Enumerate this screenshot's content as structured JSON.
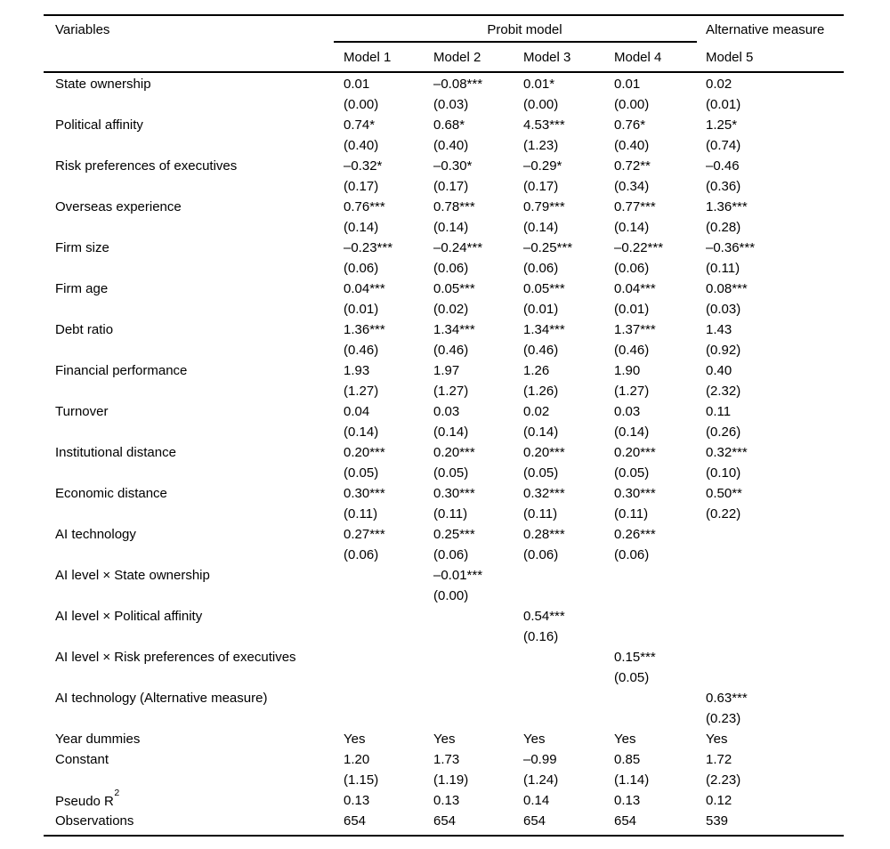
{
  "table": {
    "header": {
      "variables_label": "Variables",
      "group_label": "Probit model",
      "alt_group_label": "Alternative measure",
      "model_labels": [
        "Model 1",
        "Model 2",
        "Model 3",
        "Model 4",
        "Model 5"
      ]
    },
    "rows": [
      {
        "label": "State ownership",
        "coef": [
          "0.01",
          "–0.08***",
          "0.01*",
          "0.01",
          "0.02"
        ],
        "se": [
          "(0.00)",
          "(0.03)",
          "(0.00)",
          "(0.00)",
          "(0.01)"
        ]
      },
      {
        "label": "Political affinity",
        "coef": [
          "0.74*",
          "0.68*",
          "4.53***",
          "0.76*",
          "1.25*"
        ],
        "se": [
          "(0.40)",
          "(0.40)",
          "(1.23)",
          "(0.40)",
          "(0.74)"
        ]
      },
      {
        "label": "Risk preferences of executives",
        "coef": [
          "–0.32*",
          "–0.30*",
          "–0.29*",
          "0.72**",
          "–0.46"
        ],
        "se": [
          "(0.17)",
          "(0.17)",
          "(0.17)",
          "(0.34)",
          "(0.36)"
        ]
      },
      {
        "label": "Overseas experience",
        "coef": [
          "0.76***",
          "0.78***",
          "0.79***",
          "0.77***",
          "1.36***"
        ],
        "se": [
          "(0.14)",
          "(0.14)",
          "(0.14)",
          "(0.14)",
          "(0.28)"
        ]
      },
      {
        "label": "Firm size",
        "coef": [
          "–0.23***",
          "–0.24***",
          "–0.25***",
          "–0.22***",
          "–0.36***"
        ],
        "se": [
          "(0.06)",
          "(0.06)",
          "(0.06)",
          "(0.06)",
          "(0.11)"
        ]
      },
      {
        "label": "Firm age",
        "coef": [
          "0.04***",
          "0.05***",
          "0.05***",
          "0.04***",
          "0.08***"
        ],
        "se": [
          "(0.01)",
          "(0.02)",
          "(0.01)",
          "(0.01)",
          "(0.03)"
        ]
      },
      {
        "label": "Debt ratio",
        "coef": [
          "1.36***",
          "1.34***",
          "1.34***",
          "1.37***",
          "1.43"
        ],
        "se": [
          "(0.46)",
          "(0.46)",
          "(0.46)",
          "(0.46)",
          "(0.92)"
        ]
      },
      {
        "label": "Financial performance",
        "coef": [
          "1.93",
          "1.97",
          "1.26",
          "1.90",
          "0.40"
        ],
        "se": [
          "(1.27)",
          "(1.27)",
          "(1.26)",
          "(1.27)",
          "(2.32)"
        ]
      },
      {
        "label": "Turnover",
        "coef": [
          "0.04",
          "0.03",
          "0.02",
          "0.03",
          "0.11"
        ],
        "se": [
          "(0.14)",
          "(0.14)",
          "(0.14)",
          "(0.14)",
          "(0.26)"
        ]
      },
      {
        "label": "Institutional distance",
        "coef": [
          "0.20***",
          "0.20***",
          "0.20***",
          "0.20***",
          "0.32***"
        ],
        "se": [
          "(0.05)",
          "(0.05)",
          "(0.05)",
          "(0.05)",
          "(0.10)"
        ]
      },
      {
        "label": "Economic distance",
        "coef": [
          "0.30***",
          "0.30***",
          "0.32***",
          "0.30***",
          "0.50**"
        ],
        "se": [
          "(0.11)",
          "(0.11)",
          "(0.11)",
          "(0.11)",
          "(0.22)"
        ]
      },
      {
        "label": "AI technology",
        "coef": [
          "0.27***",
          "0.25***",
          "0.28***",
          "0.26***",
          ""
        ],
        "se": [
          "(0.06)",
          "(0.06)",
          "(0.06)",
          "(0.06)",
          ""
        ]
      },
      {
        "label": "AI level × State ownership",
        "coef": [
          "",
          "–0.01***",
          "",
          "",
          ""
        ],
        "se": [
          "",
          "(0.00)",
          "",
          "",
          ""
        ]
      },
      {
        "label": "AI level × Political affinity",
        "coef": [
          "",
          "",
          "0.54***",
          "",
          ""
        ],
        "se": [
          "",
          "",
          "(0.16)",
          "",
          ""
        ]
      },
      {
        "label": "AI level × Risk preferences of executives",
        "coef": [
          "",
          "",
          "",
          "0.15***",
          ""
        ],
        "se": [
          "",
          "",
          "",
          "(0.05)",
          ""
        ]
      },
      {
        "label": "AI technology (Alternative measure)",
        "coef": [
          "",
          "",
          "",
          "",
          "0.63***"
        ],
        "se": [
          "",
          "",
          "",
          "",
          "(0.23)"
        ]
      },
      {
        "label": "Year dummies",
        "coef": [
          "Yes",
          "Yes",
          "Yes",
          "Yes",
          "Yes"
        ]
      },
      {
        "label": "Constant",
        "coef": [
          "1.20",
          "1.73",
          "–0.99",
          "0.85",
          "1.72"
        ],
        "se": [
          "(1.15)",
          "(1.19)",
          "(1.24)",
          "(1.14)",
          "(2.23)"
        ]
      },
      {
        "label": "Pseudo R",
        "sup": "2",
        "coef": [
          "0.13",
          "0.13",
          "0.14",
          "0.13",
          "0.12"
        ]
      },
      {
        "label": "Observations",
        "coef": [
          "654",
          "654",
          "654",
          "654",
          "539"
        ]
      }
    ]
  }
}
